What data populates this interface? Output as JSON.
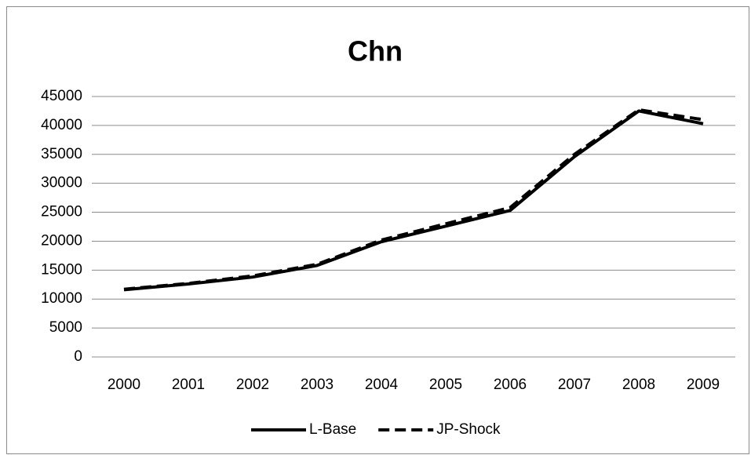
{
  "chart_data": {
    "type": "line",
    "title": "Chn",
    "categories": [
      "2000",
      "2001",
      "2002",
      "2003",
      "2004",
      "2005",
      "2006",
      "2007",
      "2008",
      "2009"
    ],
    "series": [
      {
        "name": "L-Base",
        "color": "#000000",
        "dash": "solid",
        "values": [
          11600,
          12600,
          13800,
          15800,
          19900,
          22600,
          25300,
          34600,
          42500,
          40300
        ]
      },
      {
        "name": "JP-Shock",
        "color": "#000000",
        "dash": "dashed",
        "values": [
          11700,
          12700,
          14000,
          16000,
          20200,
          23000,
          25800,
          35000,
          42700,
          41000
        ]
      }
    ],
    "ylim": [
      0,
      45000
    ],
    "yticks": [
      0,
      5000,
      10000,
      15000,
      20000,
      25000,
      30000,
      35000,
      40000,
      45000
    ],
    "grid": true,
    "legend": "bottom"
  }
}
